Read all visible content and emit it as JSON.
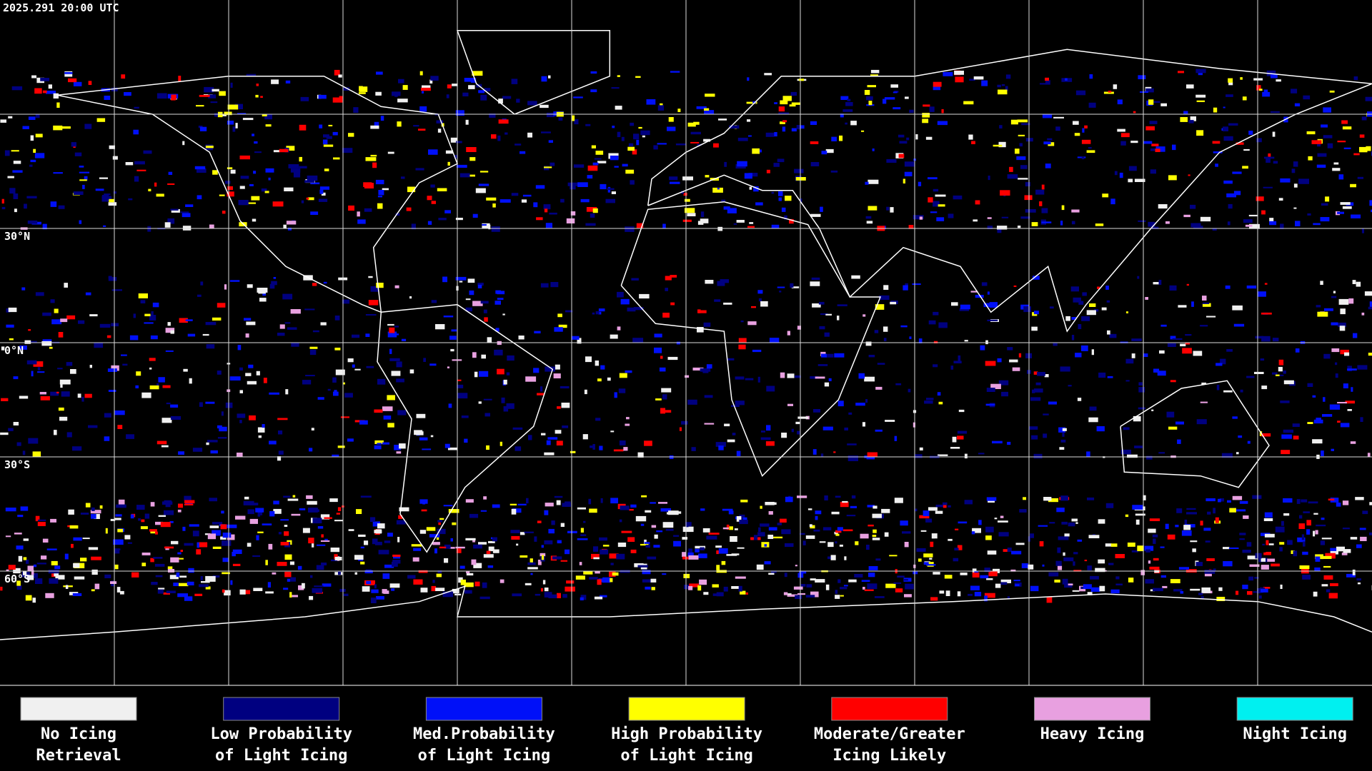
{
  "timestamp": "2025.291 20:00 UTC",
  "lat_labels": [
    "30°N",
    "0°N",
    "30°S",
    "60°S"
  ],
  "legend": {
    "items": [
      {
        "color": "#f0f0f0",
        "label": [
          "No Icing",
          "Retrieval"
        ]
      },
      {
        "color": "#000080",
        "label": [
          "Low Probability",
          "of Light Icing"
        ]
      },
      {
        "color": "#0010f8",
        "label": [
          "Med.Probability",
          "of Light Icing"
        ]
      },
      {
        "color": "#ffff00",
        "label": [
          "High Probability",
          "of Light Icing"
        ]
      },
      {
        "color": "#ff0000",
        "label": [
          "Moderate/Greater",
          "Icing Likely"
        ]
      },
      {
        "color": "#e8a0e0",
        "label": [
          "Heavy Icing"
        ]
      },
      {
        "color": "#00f0f0",
        "label": [
          "Night Icing"
        ]
      }
    ]
  }
}
